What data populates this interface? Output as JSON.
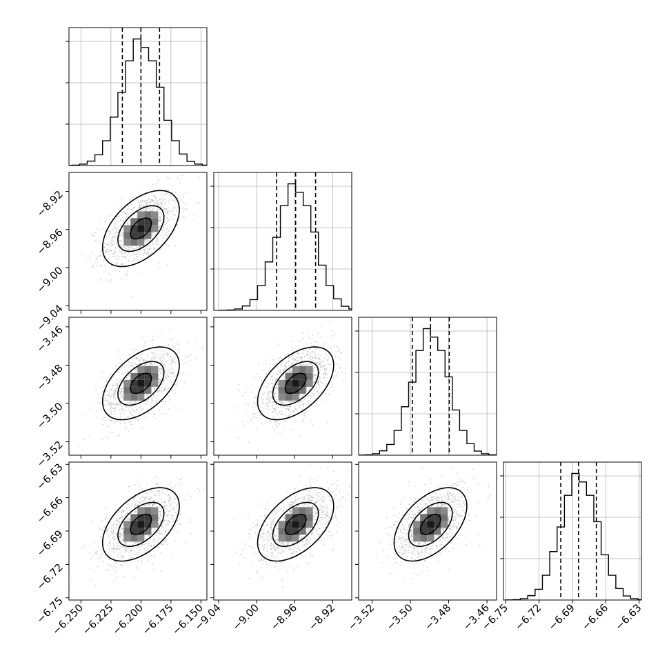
{
  "chart_data": {
    "type": "corner",
    "params": [
      {
        "range": [
          -6.26,
          -6.145
        ],
        "ticks": [
          -6.25,
          -6.225,
          -6.2,
          -6.175,
          -6.15
        ],
        "tick_labels": [
          "−6.250",
          "−6.225",
          "−6.200",
          "−6.175",
          "−6.150"
        ],
        "mean": -6.2,
        "sigma": 0.016,
        "quantiles": [
          -6.2155,
          -6.2,
          -6.1845
        ]
      },
      {
        "range": [
          -9.045,
          -8.9
        ],
        "ticks": [
          -9.04,
          -9.0,
          -8.96,
          -8.92
        ],
        "tick_labels": [
          "−9.04",
          "−9.00",
          "−8.96",
          "−8.92"
        ],
        "mean": -8.959,
        "sigma": 0.02,
        "quantiles": [
          -8.979,
          -8.959,
          -8.938
        ]
      },
      {
        "range": [
          -3.527,
          -3.455
        ],
        "ticks": [
          -3.52,
          -3.5,
          -3.48,
          -3.46
        ],
        "tick_labels": [
          "−3.52",
          "−3.50",
          "−3.48",
          "−3.46"
        ],
        "mean": -3.4895,
        "sigma": 0.0095,
        "quantiles": [
          -3.499,
          -3.4895,
          -3.4797
        ]
      },
      {
        "range": [
          -6.752,
          -6.628
        ],
        "ticks": [
          -6.75,
          -6.72,
          -6.69,
          -6.66,
          -6.63
        ],
        "tick_labels": [
          "−6.75",
          "−6.72",
          "−6.69",
          "−6.66",
          "−6.63"
        ],
        "mean": -6.684,
        "sigma": 0.0165,
        "quantiles": [
          -6.7005,
          -6.6845,
          -6.6685
        ]
      }
    ],
    "correlation": 0.5,
    "grid": true,
    "contour_levels": 3
  }
}
